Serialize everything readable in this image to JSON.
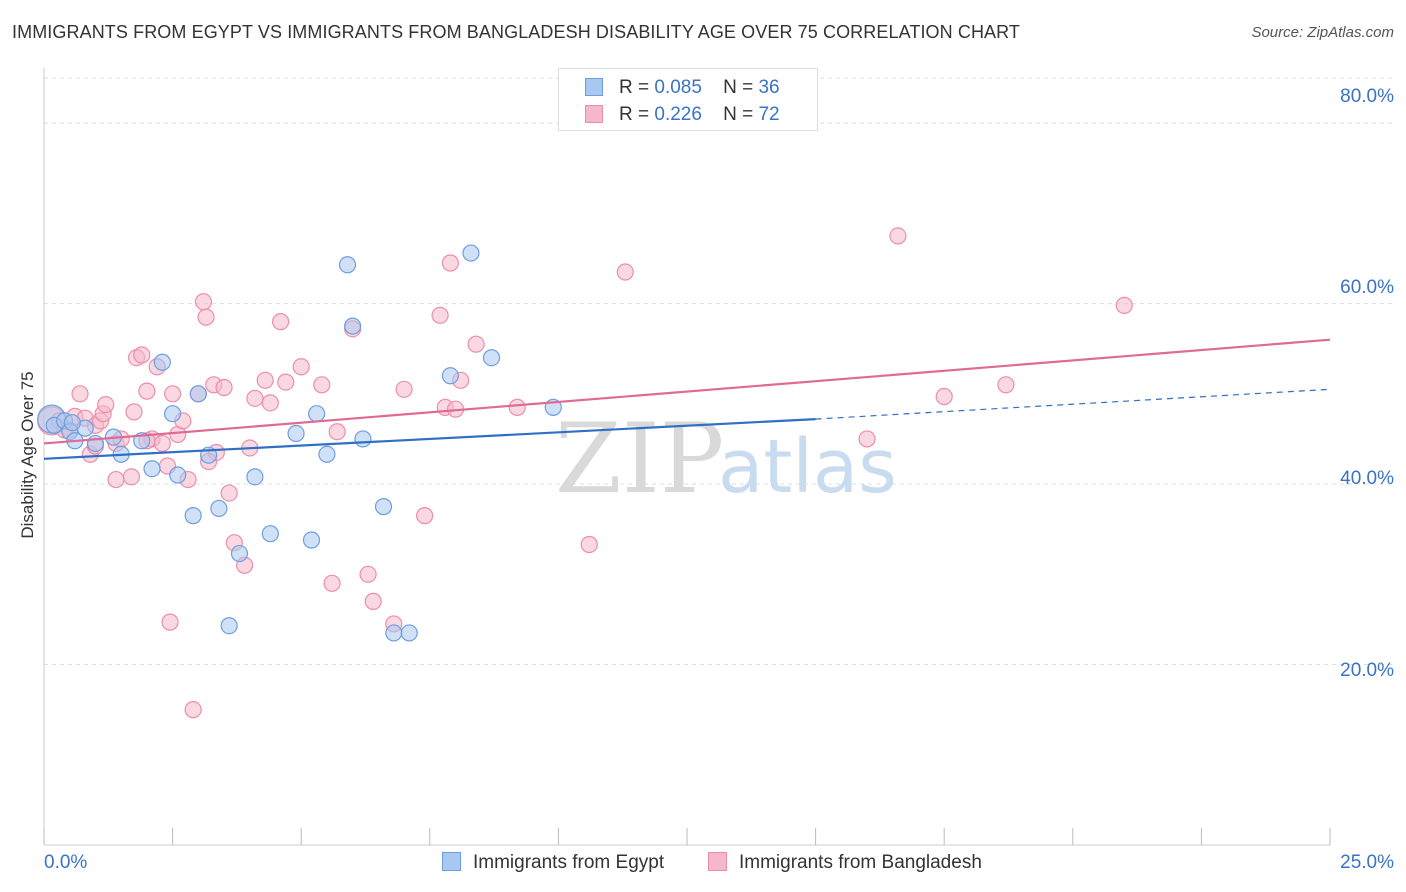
{
  "title": "IMMIGRANTS FROM EGYPT VS IMMIGRANTS FROM BANGLADESH DISABILITY AGE OVER 75 CORRELATION CHART",
  "source": "Source: ZipAtlas.com",
  "watermark": {
    "zip": "ZIP",
    "atlas": "atlas"
  },
  "legend": {
    "egypt": {
      "r_label": "R =",
      "r_value": "0.085",
      "n_label": "N =",
      "n_value": "36"
    },
    "bangladesh": {
      "r_label": "R =",
      "r_value": "0.226",
      "n_label": "N =",
      "n_value": "72"
    }
  },
  "colors": {
    "egypt_fill": "#a9c8f0",
    "egypt_stroke": "#6d9fe0",
    "egypt_line": "#2f6fc6",
    "bangladesh_fill": "#f5b8cb",
    "bangladesh_stroke": "#ec8eaa",
    "bangladesh_line": "#e06a94",
    "grid": "#dddddd",
    "axis_text": "#3a72c8"
  },
  "chart_data": {
    "type": "scatter",
    "title": "IMMIGRANTS FROM EGYPT VS IMMIGRANTS FROM BANGLADESH DISABILITY AGE OVER 75 CORRELATION CHART",
    "xlabel": "",
    "ylabel": "Disability Age Over 75",
    "xlim": [
      0,
      25
    ],
    "ylim": [
      0,
      85
    ],
    "x_tick_labels": [
      {
        "value": 0,
        "label": "0.0%"
      },
      {
        "value": 25,
        "label": "25.0%"
      }
    ],
    "y_tick_labels": [
      {
        "value": 20,
        "label": "20.0%"
      },
      {
        "value": 40,
        "label": "40.0%"
      },
      {
        "value": 60,
        "label": "60.0%"
      },
      {
        "value": 80,
        "label": "80.0%"
      }
    ],
    "series": [
      {
        "name": "Immigrants from Egypt",
        "color": "#a9c8f0",
        "big_point": [
          0.15,
          47.2
        ],
        "points": [
          [
            0.2,
            46.5
          ],
          [
            0.4,
            47.0
          ],
          [
            0.5,
            45.8
          ],
          [
            0.6,
            44.8
          ],
          [
            0.8,
            46.2
          ],
          [
            1.0,
            44.5
          ],
          [
            1.5,
            43.3
          ],
          [
            1.9,
            44.8
          ],
          [
            2.1,
            41.7
          ],
          [
            2.3,
            53.5
          ],
          [
            2.5,
            47.8
          ],
          [
            2.6,
            41.0
          ],
          [
            2.9,
            36.5
          ],
          [
            3.0,
            50.0
          ],
          [
            3.2,
            43.2
          ],
          [
            3.4,
            37.3
          ],
          [
            3.6,
            24.3
          ],
          [
            3.8,
            32.3
          ],
          [
            4.1,
            40.8
          ],
          [
            4.4,
            34.5
          ],
          [
            4.9,
            45.6
          ],
          [
            5.2,
            33.8
          ],
          [
            5.3,
            47.8
          ],
          [
            5.5,
            43.3
          ],
          [
            5.9,
            64.3
          ],
          [
            6.0,
            57.5
          ],
          [
            6.2,
            45.0
          ],
          [
            6.6,
            37.5
          ],
          [
            6.8,
            23.5
          ],
          [
            7.1,
            23.5
          ],
          [
            7.9,
            52.0
          ],
          [
            8.3,
            65.6
          ],
          [
            8.7,
            54.0
          ],
          [
            9.9,
            48.5
          ],
          [
            0.55,
            46.8
          ],
          [
            1.35,
            45.2
          ]
        ],
        "trend": {
          "x0": 0,
          "y0": 42.8,
          "x1": 15,
          "y1": 47.2,
          "dashed_to_x": 25,
          "dashed_to_y": 50.5
        }
      },
      {
        "name": "Immigrants from Bangladesh",
        "color": "#f5b8cb",
        "big_point": [
          0.15,
          47.0
        ],
        "points": [
          [
            0.2,
            46.5
          ],
          [
            0.3,
            47.0
          ],
          [
            0.5,
            46.0
          ],
          [
            0.6,
            47.5
          ],
          [
            0.7,
            50.0
          ],
          [
            0.8,
            47.3
          ],
          [
            0.9,
            43.3
          ],
          [
            1.0,
            46.5
          ],
          [
            1.1,
            47.0
          ],
          [
            1.15,
            47.8
          ],
          [
            1.2,
            48.8
          ],
          [
            1.4,
            44.5
          ],
          [
            1.4,
            40.5
          ],
          [
            1.5,
            45.0
          ],
          [
            1.7,
            40.8
          ],
          [
            1.75,
            48.0
          ],
          [
            1.8,
            54.0
          ],
          [
            1.9,
            54.3
          ],
          [
            2.0,
            50.3
          ],
          [
            2.1,
            45.0
          ],
          [
            2.2,
            53.0
          ],
          [
            2.3,
            44.5
          ],
          [
            2.4,
            42.0
          ],
          [
            2.45,
            24.7
          ],
          [
            2.5,
            50.0
          ],
          [
            2.6,
            45.5
          ],
          [
            2.7,
            47.0
          ],
          [
            2.8,
            40.5
          ],
          [
            2.9,
            15.0
          ],
          [
            3.0,
            50.0
          ],
          [
            3.1,
            60.2
          ],
          [
            3.15,
            58.5
          ],
          [
            3.3,
            51.0
          ],
          [
            3.35,
            43.5
          ],
          [
            3.5,
            50.7
          ],
          [
            3.6,
            39.0
          ],
          [
            3.7,
            33.5
          ],
          [
            3.9,
            31.0
          ],
          [
            4.0,
            44.0
          ],
          [
            4.1,
            49.5
          ],
          [
            4.3,
            51.5
          ],
          [
            4.4,
            49.0
          ],
          [
            4.6,
            58.0
          ],
          [
            4.7,
            51.3
          ],
          [
            5.0,
            53.0
          ],
          [
            5.4,
            51.0
          ],
          [
            5.6,
            29.0
          ],
          [
            5.7,
            45.8
          ],
          [
            6.0,
            57.2
          ],
          [
            6.3,
            30.0
          ],
          [
            6.4,
            27.0
          ],
          [
            6.8,
            24.5
          ],
          [
            7.0,
            50.5
          ],
          [
            7.4,
            36.5
          ],
          [
            7.7,
            58.7
          ],
          [
            7.8,
            48.5
          ],
          [
            7.9,
            64.5
          ],
          [
            8.0,
            48.3
          ],
          [
            8.1,
            51.5
          ],
          [
            8.4,
            55.5
          ],
          [
            9.2,
            48.5
          ],
          [
            10.6,
            33.3
          ],
          [
            11.3,
            63.5
          ],
          [
            16.0,
            45.0
          ],
          [
            16.6,
            67.5
          ],
          [
            17.5,
            49.7
          ],
          [
            18.7,
            51.0
          ],
          [
            21.0,
            59.8
          ],
          [
            1.0,
            44.2
          ],
          [
            0.4,
            46.0
          ],
          [
            2.0,
            44.8
          ],
          [
            3.2,
            42.5
          ]
        ],
        "trend": {
          "x0": 0,
          "y0": 44.5,
          "x1": 25,
          "y1": 56.0
        }
      }
    ]
  },
  "bottom_legend": {
    "egypt_label": "Immigrants from Egypt",
    "bangladesh_label": "Immigrants from Bangladesh"
  }
}
